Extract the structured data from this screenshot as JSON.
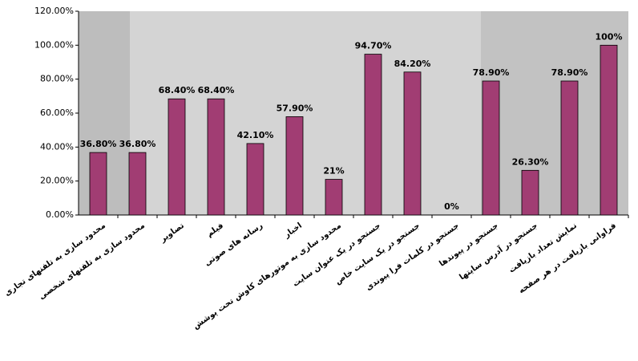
{
  "chart_data": {
    "type": "bar",
    "categories": [
      "محدود سازی به تلفنهای تجاری",
      "محدود سازی به تلفنهای شخصی",
      "تصاویر",
      "فیلم",
      "رسانه های صوتی",
      "اخبار",
      "محدود سازی به موتورهای کاوش تحت پوشش",
      "جستجو در یک عنوان سایت",
      "جستجو در یک سایت خاص",
      "جستجو در کلمات فرا پیوندی",
      "جستجو در پیوندها",
      "جستجو در آدرس سایتها",
      "نمایش تعداد بازیافت",
      "فراوانی بازیافت در هر صفحه"
    ],
    "values": [
      36.8,
      36.8,
      68.4,
      68.4,
      42.1,
      57.9,
      21,
      94.7,
      84.2,
      0,
      78.9,
      26.3,
      78.9,
      100
    ],
    "value_labels": [
      "36.80%",
      "36.80%",
      "68.40%",
      "68.40%",
      "42.10%",
      "57.90%",
      "21%",
      "94.70%",
      "84.20%",
      "0%",
      "78.90%",
      "26.30%",
      "78.90%",
      "100%"
    ],
    "color": "#a13d73",
    "ylim": [
      0,
      120
    ],
    "yticks": [
      {
        "value": 0,
        "label": "0.00%"
      },
      {
        "value": 20,
        "label": "20.00%"
      },
      {
        "value": 40,
        "label": "40.00%"
      },
      {
        "value": 60,
        "label": "60.00%"
      },
      {
        "value": 80,
        "label": "80.00%"
      },
      {
        "value": 100,
        "label": "100.00%"
      },
      {
        "value": 120,
        "label": "120.00%"
      }
    ]
  }
}
